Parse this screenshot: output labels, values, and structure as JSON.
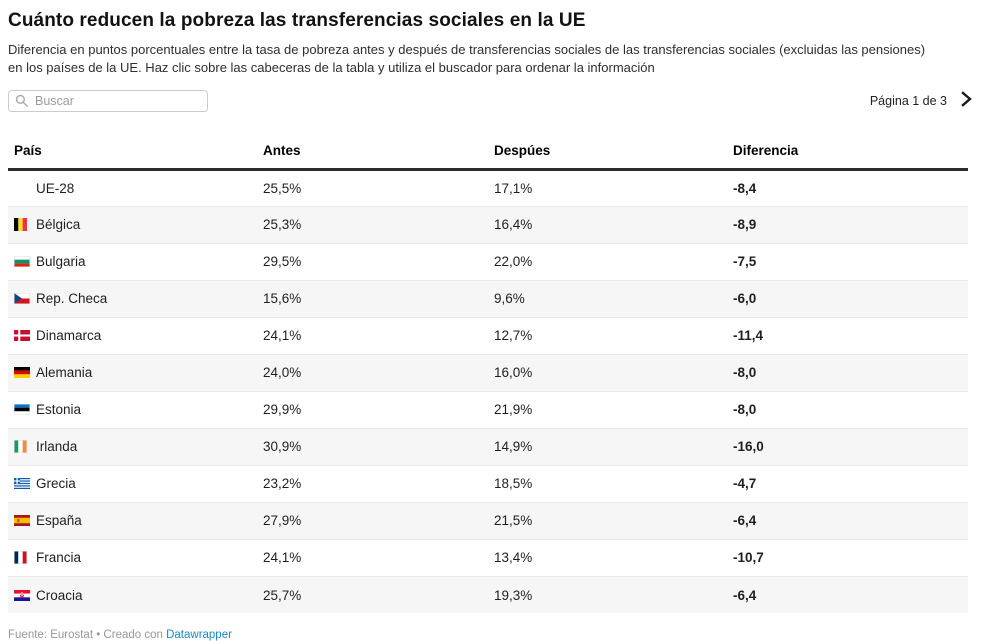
{
  "header": {
    "title": "Cuánto reducen la pobreza las transferencias sociales en la UE",
    "subtitle": "Diferencia en puntos porcentuales entre la tasa de pobreza antes y después de transferencias sociales de las transferencias sociales (excluidas las pensiones) en los países de la UE. Haz clic sobre las cabeceras de la tabla y utiliza el buscador para ordenar la información"
  },
  "toolbar": {
    "search_placeholder": "Buscar",
    "search_value": "",
    "search_icon": "search-icon",
    "pagination_label": "Página 1 de 3",
    "next_icon": "chevron-right-icon"
  },
  "table": {
    "columns": {
      "pais": "País",
      "antes": "Antes",
      "despues": "Despúes",
      "diferencia": "Diferencia"
    },
    "rows": [
      {
        "flag_icon": null,
        "country": "UE-28",
        "antes": "25,5%",
        "despues": "17,1%",
        "diferencia": "-8,4"
      },
      {
        "flag_icon": "flag-belgium-icon",
        "country": "Bélgica",
        "antes": "25,3%",
        "despues": "16,4%",
        "diferencia": "-8,9"
      },
      {
        "flag_icon": "flag-bulgaria-icon",
        "country": "Bulgaria",
        "antes": "29,5%",
        "despues": "22,0%",
        "diferencia": "-7,5"
      },
      {
        "flag_icon": "flag-czechia-icon",
        "country": "Rep. Checa",
        "antes": "15,6%",
        "despues": "9,6%",
        "diferencia": "-6,0"
      },
      {
        "flag_icon": "flag-denmark-icon",
        "country": "Dinamarca",
        "antes": "24,1%",
        "despues": "12,7%",
        "diferencia": "-11,4"
      },
      {
        "flag_icon": "flag-germany-icon",
        "country": "Alemania",
        "antes": "24,0%",
        "despues": "16,0%",
        "diferencia": "-8,0"
      },
      {
        "flag_icon": "flag-estonia-icon",
        "country": "Estonia",
        "antes": "29,9%",
        "despues": "21,9%",
        "diferencia": "-8,0"
      },
      {
        "flag_icon": "flag-ireland-icon",
        "country": "Irlanda",
        "antes": "30,9%",
        "despues": "14,9%",
        "diferencia": "-16,0"
      },
      {
        "flag_icon": "flag-greece-icon",
        "country": "Grecia",
        "antes": "23,2%",
        "despues": "18,5%",
        "diferencia": "-4,7"
      },
      {
        "flag_icon": "flag-spain-icon",
        "country": "España",
        "antes": "27,9%",
        "despues": "21,5%",
        "diferencia": "-6,4"
      },
      {
        "flag_icon": "flag-france-icon",
        "country": "Francia",
        "antes": "24,1%",
        "despues": "13,4%",
        "diferencia": "-10,7"
      },
      {
        "flag_icon": "flag-croatia-icon",
        "country": "Croacia",
        "antes": "25,7%",
        "despues": "19,3%",
        "diferencia": "-6,4"
      }
    ]
  },
  "footer": {
    "source_prefix": "Fuente: Eurostat • Creado con",
    "link_label": "Datawrapper"
  },
  "colors": {
    "link_blue": "#1d87c9",
    "header_border": "#2b2b2b",
    "row_stripe": "#f6f6f6",
    "muted_text": "#979797"
  },
  "chart_data": {
    "type": "table",
    "title": "Cuánto reducen la pobreza las transferencias sociales en la UE",
    "subtitle": "Diferencia en puntos porcentuales entre la tasa de pobreza antes y después de transferencias sociales de las transferencias sociales (excluidas las pensiones) en los países de la UE. Haz clic sobre las cabeceras de la tabla y utiliza el buscador para ordenar la información",
    "columns": [
      "País",
      "Antes",
      "Despúes",
      "Diferencia"
    ],
    "units": {
      "antes": "percent",
      "despues": "percent",
      "diferencia": "percentage points"
    },
    "rows": [
      [
        "UE-28",
        25.5,
        17.1,
        -8.4
      ],
      [
        "Bélgica",
        25.3,
        16.4,
        -8.9
      ],
      [
        "Bulgaria",
        29.5,
        22.0,
        -7.5
      ],
      [
        "Rep. Checa",
        15.6,
        9.6,
        -6.0
      ],
      [
        "Dinamarca",
        24.1,
        12.7,
        -11.4
      ],
      [
        "Alemania",
        24.0,
        16.0,
        -8.0
      ],
      [
        "Estonia",
        29.9,
        21.9,
        -8.0
      ],
      [
        "Irlanda",
        30.9,
        14.9,
        -16.0
      ],
      [
        "Grecia",
        23.2,
        18.5,
        -4.7
      ],
      [
        "España",
        27.9,
        21.5,
        -6.4
      ],
      [
        "Francia",
        24.1,
        13.4,
        -10.7
      ],
      [
        "Croacia",
        25.7,
        19.3,
        -6.4
      ]
    ],
    "pagination": {
      "current_page": 1,
      "total_pages": 3
    },
    "source": "Fuente: Eurostat",
    "credit": "Creado con Datawrapper"
  }
}
